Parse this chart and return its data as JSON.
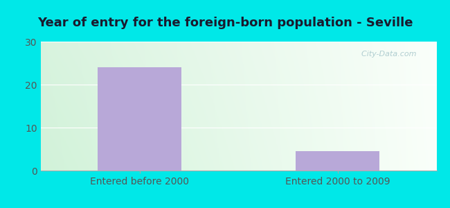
{
  "title": "Year of entry for the foreign-born population - Seville",
  "categories": [
    "Entered before 2000",
    "Entered 2000 to 2009"
  ],
  "values": [
    24.0,
    4.5
  ],
  "bar_color": "#b8a8d8",
  "ylim": [
    0,
    30
  ],
  "yticks": [
    0,
    10,
    20,
    30
  ],
  "outer_bg": "#00e8e8",
  "title_fontsize": 13,
  "tick_label_fontsize": 10,
  "watermark": "  City-Data.com",
  "watermark_icon": "●",
  "grid_color": "#e0ece0",
  "tick_color": "#555555",
  "title_color": "#1a1a2e"
}
